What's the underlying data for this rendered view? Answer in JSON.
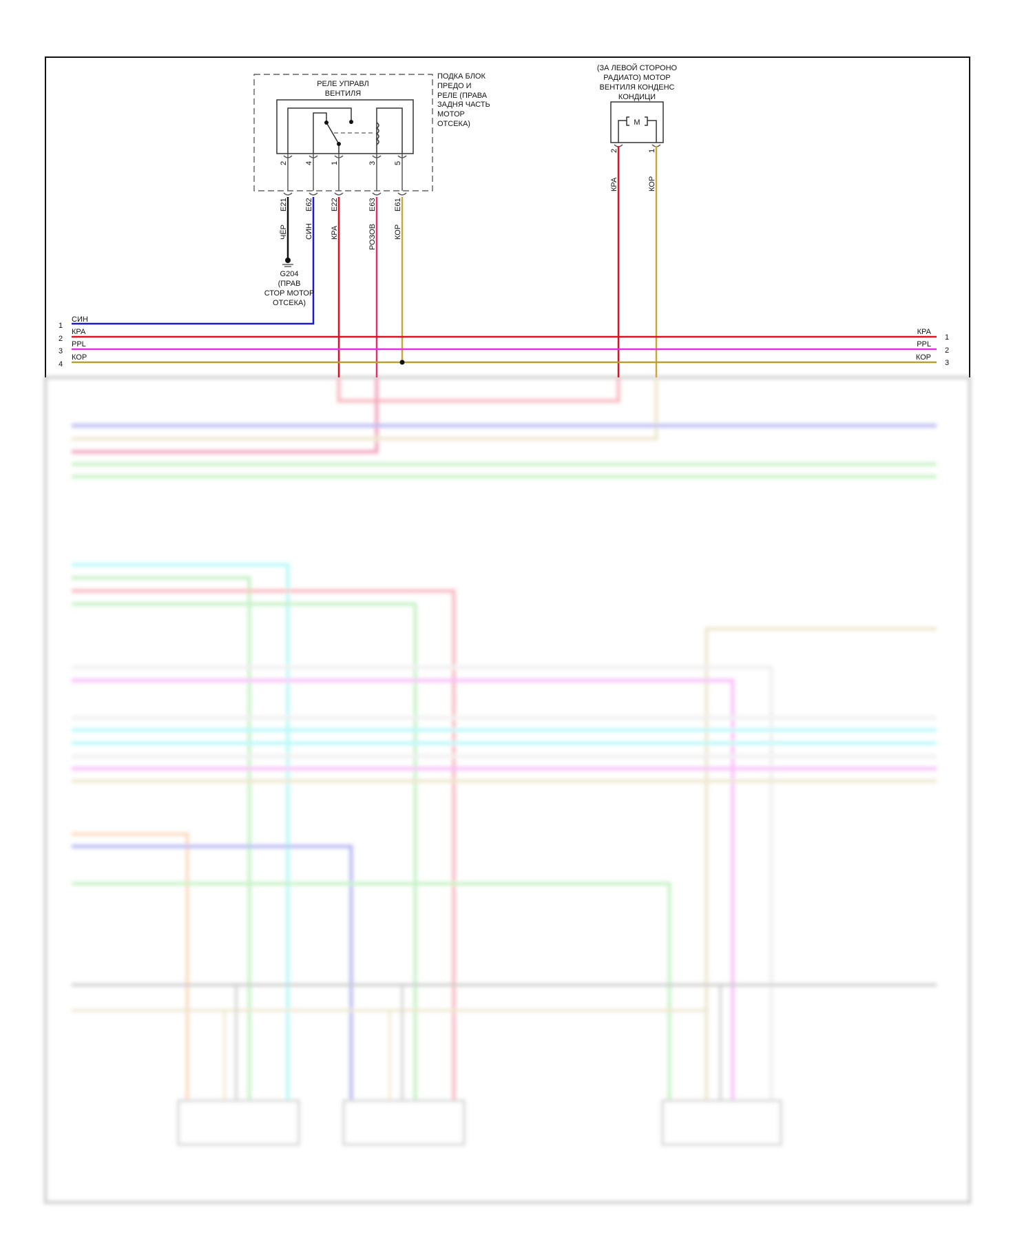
{
  "relay": {
    "title_line1": "РЕЛЕ УПРАВЛ",
    "title_line2": "ВЕНТИЛЯ",
    "location": [
      "ПОДКА БЛОК",
      "ПРЕДО И",
      "РЕЛЕ (ПРАВА",
      "ЗАДНЯ ЧАСТЬ",
      "МОТОР",
      "ОТСЕКА)"
    ],
    "pins": [
      "2",
      "4",
      "1",
      "3",
      "5"
    ],
    "connectors": [
      "E21",
      "E62",
      "E22",
      "E63",
      "E61"
    ],
    "wire_colors": [
      "ЧЁР",
      "СИН",
      "КРА",
      "РОЗОВ",
      "КОР"
    ]
  },
  "ground": {
    "id": "G204",
    "location": [
      "(ПРАВ",
      "СТОР МОТОР",
      "ОТСЕКА)"
    ]
  },
  "motor": {
    "location": [
      "(ЗА ЛЕВОЙ СТОРОНО",
      "РАДИАТО) МОТОР",
      "ВЕНТИЛЯ КОНДЕНС",
      "КОНДИЦИ"
    ],
    "symbol": "M",
    "pins": [
      "2",
      "1"
    ],
    "wire_colors": [
      "КРА",
      "КОР"
    ]
  },
  "bus_left": [
    {
      "num": "1",
      "label": "СИН",
      "color": "#1a1acc"
    },
    {
      "num": "2",
      "label": "КРА",
      "color": "#e01020"
    },
    {
      "num": "3",
      "label": "PPL",
      "color": "#e030e0"
    },
    {
      "num": "4",
      "label": "КОР",
      "color": "#b8a030"
    }
  ],
  "bus_right": [
    {
      "num": "1",
      "label": "КРА"
    },
    {
      "num": "2",
      "label": "PPL"
    },
    {
      "num": "3",
      "label": "КОР"
    }
  ],
  "colors": {
    "black": "#111111",
    "blue": "#1a1acc",
    "red": "#e01020",
    "pink": "#e0306a",
    "yellow": "#c8a838",
    "ppl": "#e030e0"
  }
}
